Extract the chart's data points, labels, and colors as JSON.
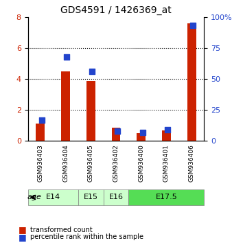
{
  "title": "GDS4591 / 1426369_at",
  "samples": [
    "GSM936403",
    "GSM936404",
    "GSM936405",
    "GSM936402",
    "GSM936400",
    "GSM936401",
    "GSM936406"
  ],
  "transformed_count": [
    1.1,
    4.5,
    3.85,
    0.85,
    0.5,
    0.7,
    7.6
  ],
  "percentile_rank": [
    17.0,
    68.0,
    56.0,
    8.0,
    7.0,
    9.0,
    93.0
  ],
  "age_group_spans": [
    {
      "label": "E14",
      "start": 0,
      "end": 2,
      "color": "#ccffcc"
    },
    {
      "label": "E15",
      "start": 2,
      "end": 3,
      "color": "#ccffcc"
    },
    {
      "label": "E16",
      "start": 3,
      "end": 4,
      "color": "#ccffcc"
    },
    {
      "label": "E17.5",
      "start": 4,
      "end": 7,
      "color": "#55dd55"
    }
  ],
  "ylim_left": [
    0,
    8
  ],
  "ylim_right": [
    0,
    100
  ],
  "yticks_left": [
    0,
    2,
    4,
    6,
    8
  ],
  "yticks_right": [
    0,
    25,
    50,
    75,
    100
  ],
  "bar_color": "#cc2200",
  "dot_color": "#2244cc",
  "bg_color": "#ffffff",
  "bar_width": 0.35,
  "dot_size": 40,
  "legend_labels": [
    "transformed count",
    "percentile rank within the sample"
  ]
}
